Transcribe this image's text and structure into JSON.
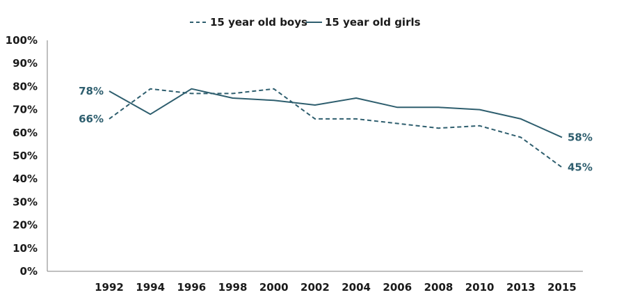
{
  "chart_data": {
    "type": "line",
    "title": "",
    "xlabel": "",
    "ylabel": "",
    "ylim": [
      0,
      100
    ],
    "y_ticks": [
      "0%",
      "10%",
      "20%",
      "30%",
      "40%",
      "50%",
      "60%",
      "70%",
      "80%",
      "90%",
      "100%"
    ],
    "categories": [
      "1992",
      "1994",
      "1996",
      "1998",
      "2000",
      "2002",
      "2004",
      "2006",
      "2008",
      "2010",
      "2013",
      "2015"
    ],
    "grid": false,
    "legend_position": "top-center",
    "line_color": "#2e5e6e",
    "series": [
      {
        "name": "15 year old boys",
        "style": "dashed",
        "values": [
          66,
          79,
          77,
          77,
          79,
          66,
          66,
          64,
          62,
          63,
          58,
          45
        ],
        "annotations": [
          {
            "index": 0,
            "text": "66%"
          },
          {
            "index": 11,
            "text": "45%"
          }
        ]
      },
      {
        "name": "15 year old girls",
        "style": "solid",
        "values": [
          78,
          68,
          79,
          75,
          74,
          72,
          75,
          71,
          71,
          70,
          66,
          58
        ],
        "annotations": [
          {
            "index": 0,
            "text": "78%"
          },
          {
            "index": 11,
            "text": "58%"
          }
        ]
      }
    ]
  }
}
